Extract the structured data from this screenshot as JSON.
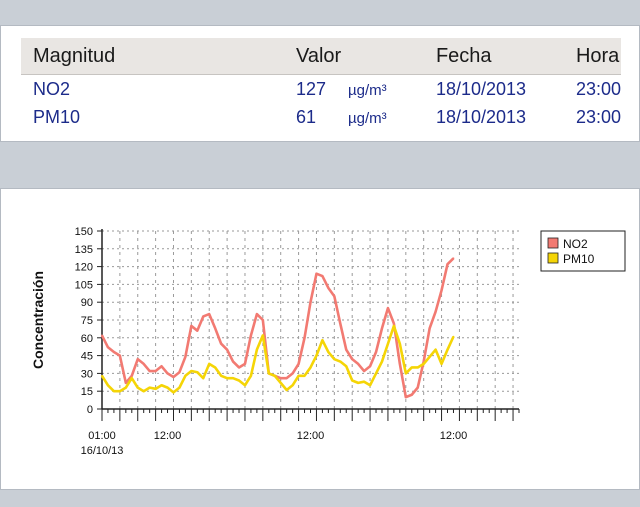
{
  "summary_table": {
    "headers": [
      "Magnitud",
      "Valor",
      "Fecha",
      "Hora"
    ],
    "rows": [
      {
        "magnitud": "NO2",
        "valor": "127",
        "unidad": "µg/m³",
        "fecha": "18/10/2013",
        "hora": "23:00"
      },
      {
        "magnitud": "PM10",
        "valor": "61",
        "unidad": "µg/m³",
        "fecha": "18/10/2013",
        "hora": "23:00"
      }
    ]
  },
  "chart_data": {
    "type": "line",
    "ylabel": "Concentración",
    "ylim": [
      0,
      150
    ],
    "y_ticks": [
      0,
      15,
      30,
      45,
      60,
      75,
      90,
      105,
      120,
      135,
      150
    ],
    "x_tick_labels": [
      {
        "label": "01:00",
        "sublabel": "16/10/13",
        "hour": 0
      },
      {
        "label": "12:00",
        "hour": 11
      },
      {
        "label": "12:00",
        "hour": 35
      },
      {
        "label": "12:00",
        "hour": 59
      }
    ],
    "x_range_hours": [
      0,
      70
    ],
    "grid": true,
    "legend_position": "top-right",
    "series": [
      {
        "name": "NO2",
        "color": "#f27a72",
        "values": [
          62,
          52,
          48,
          45,
          22,
          28,
          42,
          38,
          32,
          32,
          36,
          30,
          27,
          31,
          44,
          70,
          66,
          78,
          80,
          68,
          55,
          50,
          40,
          35,
          38,
          62,
          80,
          75,
          30,
          28,
          26,
          26,
          30,
          38,
          60,
          90,
          114,
          112,
          102,
          95,
          72,
          50,
          42,
          38,
          32,
          36,
          48,
          68,
          85,
          72,
          38,
          10,
          12,
          18,
          40,
          68,
          82,
          100,
          122,
          127
        ]
      },
      {
        "name": "PM10",
        "color": "#f5d506",
        "values": [
          28,
          20,
          15,
          15,
          18,
          26,
          18,
          15,
          18,
          17,
          20,
          18,
          14,
          18,
          28,
          32,
          31,
          26,
          38,
          35,
          28,
          26,
          26,
          24,
          20,
          28,
          50,
          62,
          30,
          28,
          22,
          16,
          20,
          28,
          28,
          35,
          45,
          58,
          48,
          42,
          40,
          36,
          24,
          22,
          23,
          20,
          30,
          40,
          55,
          70,
          55,
          30,
          35,
          35,
          38,
          44,
          50,
          38,
          50,
          61
        ]
      }
    ]
  }
}
